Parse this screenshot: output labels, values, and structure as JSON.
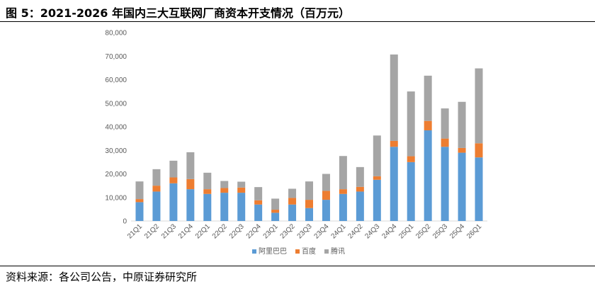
{
  "title": "图 5：2021-2026 年国内三大互联网厂商资本开支情况（百万元）",
  "source": "资料来源：各公司公告，中原证券研究所",
  "chart_data": {
    "type": "bar",
    "stacked": true,
    "categories": [
      "21Q1",
      "21Q2",
      "21Q3",
      "21Q4",
      "22Q1",
      "22Q2",
      "22Q3",
      "22Q4",
      "23Q1",
      "23Q2",
      "23Q3",
      "23Q4",
      "24Q1",
      "24Q2",
      "24Q3",
      "24Q4",
      "25Q1",
      "25Q2",
      "25Q3",
      "25Q4",
      "26Q1"
    ],
    "series": [
      {
        "name": "阿里巴巴",
        "color": "#5B9BD5",
        "values": [
          8000,
          12500,
          16000,
          13500,
          11500,
          12000,
          12000,
          7000,
          3500,
          7000,
          5500,
          9000,
          11500,
          12500,
          17500,
          31500,
          25000,
          38500,
          31500,
          29000,
          27000
        ]
      },
      {
        "name": "百度",
        "color": "#ED7D31",
        "values": [
          1300,
          2500,
          2500,
          4300,
          2000,
          2000,
          2200,
          1800,
          1300,
          2800,
          3500,
          3800,
          2000,
          2000,
          1500,
          2500,
          2500,
          4000,
          3500,
          2000,
          6000
        ]
      },
      {
        "name": "腾讯",
        "color": "#A5A5A5",
        "values": [
          7500,
          7000,
          7100,
          11400,
          7000,
          3000,
          2500,
          5600,
          4700,
          3900,
          7800,
          7200,
          14100,
          8400,
          17300,
          36700,
          27500,
          19200,
          12800,
          19600,
          31800
        ]
      }
    ],
    "yaxis": {
      "min": 0,
      "max": 80000,
      "step": 10000,
      "tick_labels": [
        "0",
        "10,000",
        "20,000",
        "30,000",
        "40,000",
        "50,000",
        "60,000",
        "70,000",
        "80,000"
      ]
    },
    "legend": {
      "position": "bottom"
    },
    "grid": false
  }
}
